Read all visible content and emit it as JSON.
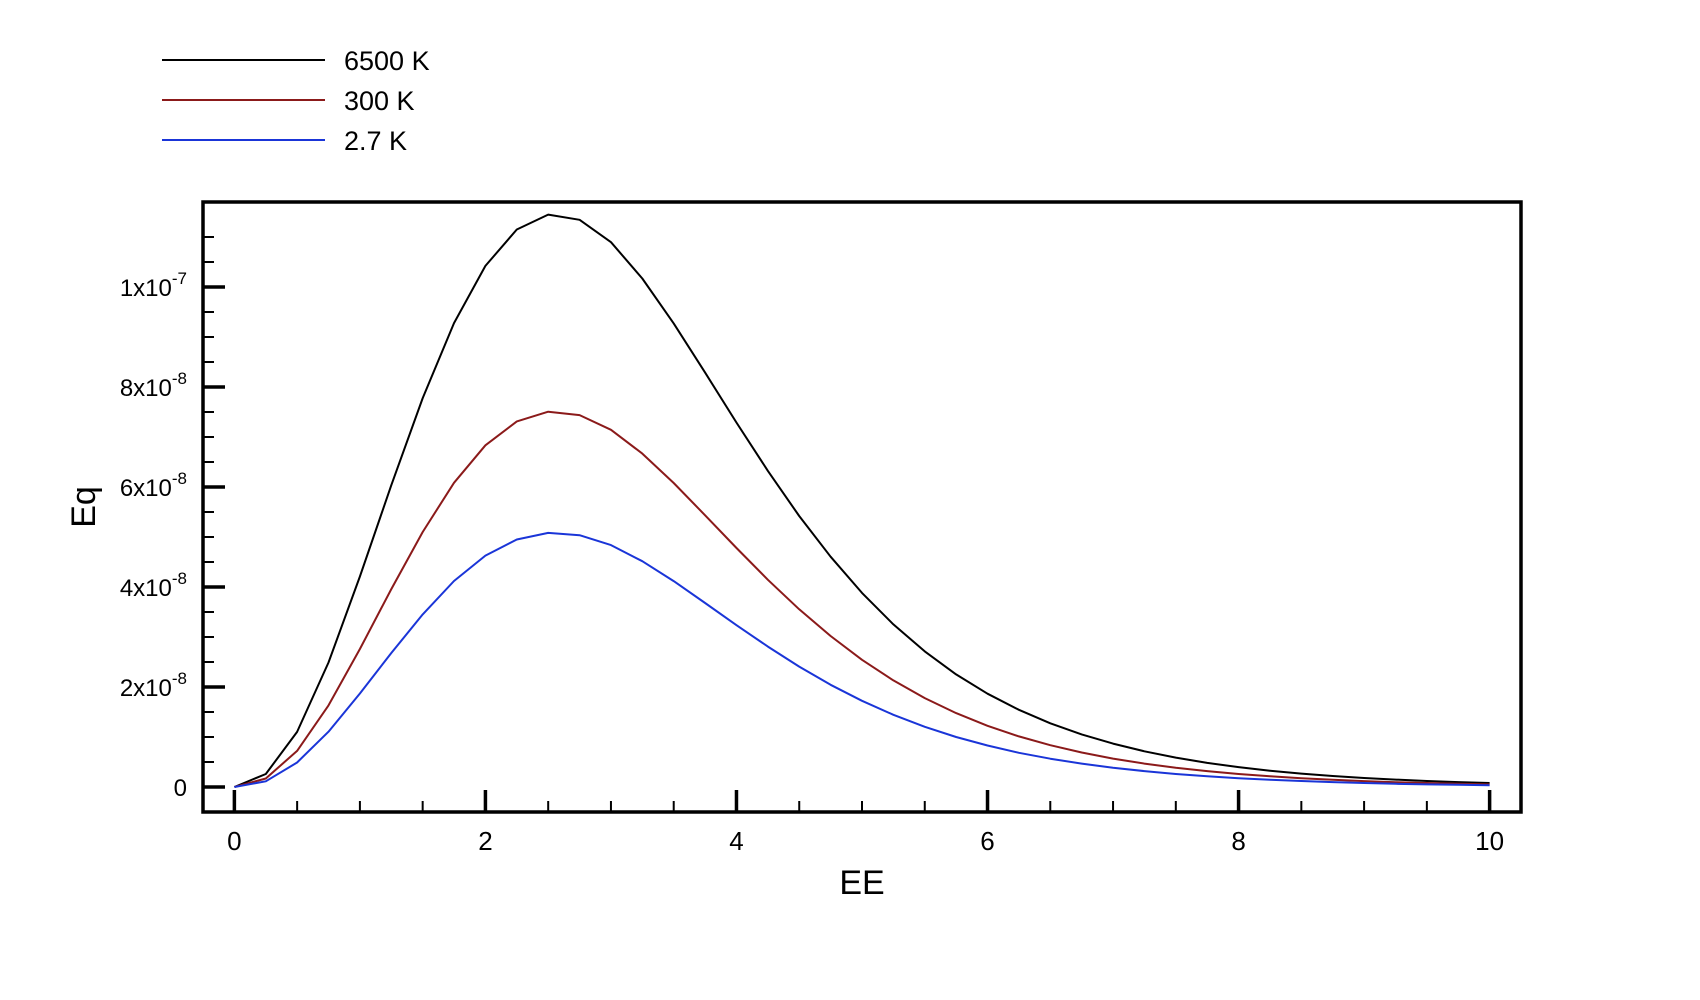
{
  "chart_data": {
    "type": "line",
    "title": "",
    "xlabel": "EE",
    "ylabel": "Eq",
    "xlim": [
      -0.25,
      10.25
    ],
    "ylim": [
      -5e-09,
      1.17e-07
    ],
    "x_ticks": [
      0,
      2,
      4,
      6,
      8,
      10
    ],
    "x_tick_labels": [
      "0",
      "2",
      "4",
      "6",
      "8",
      "10"
    ],
    "x_minor_step": 0.5,
    "y_ticks": [
      {
        "value": 0,
        "base": "0",
        "exp": ""
      },
      {
        "value": 2e-08,
        "base": "2x10",
        "exp": "-8"
      },
      {
        "value": 4e-08,
        "base": "4x10",
        "exp": "-8"
      },
      {
        "value": 6e-08,
        "base": "6x10",
        "exp": "-8"
      },
      {
        "value": 8e-08,
        "base": "8x10",
        "exp": "-8"
      },
      {
        "value": 1e-07,
        "base": "1x10",
        "exp": "-7"
      }
    ],
    "y_minor_step": 5e-09,
    "grid": false,
    "legend_position": "top-left, outside plot",
    "x": [
      0,
      0.25,
      0.5,
      0.75,
      1,
      1.25,
      1.5,
      1.75,
      2,
      2.25,
      2.5,
      2.75,
      3,
      3.25,
      3.5,
      3.75,
      4,
      4.25,
      4.5,
      4.75,
      5,
      5.25,
      5.5,
      5.75,
      6,
      6.25,
      6.5,
      6.75,
      7,
      7.25,
      7.5,
      7.75,
      8,
      8.25,
      8.5,
      8.75,
      9,
      9.25,
      9.5,
      9.75,
      10
    ],
    "series": [
      {
        "name": "6500 K",
        "color": "#000000",
        "values": [
          0,
          2.59e-09,
          1.103e-08,
          2.491e-08,
          4.209e-08,
          6.036e-08,
          7.778e-08,
          9.279e-08,
          1.0423e-07,
          1.115e-07,
          1.1447e-07,
          1.1344e-07,
          1.0896e-07,
          1.017e-07,
          9.273e-08,
          8.288e-08,
          7.288e-08,
          6.322e-08,
          5.421e-08,
          4.606e-08,
          3.882e-08,
          3.252e-08,
          2.712e-08,
          2.252e-08,
          1.866e-08,
          1.544e-08,
          1.275e-08,
          1.052e-08,
          8.67e-09,
          7.14e-09,
          5.88e-09,
          4.83e-09,
          3.97e-09,
          3.26e-09,
          2.67e-09,
          2.19e-09,
          1.79e-09,
          1.47e-09,
          1.2e-09,
          9.8e-10,
          8e-10
        ]
      },
      {
        "name": "300 K",
        "color": "#8b1a1a",
        "values": [
          0,
          1.7e-09,
          7.23e-09,
          1.633e-08,
          2.76e-08,
          3.958e-08,
          5.1e-08,
          6.084e-08,
          6.834e-08,
          7.311e-08,
          7.506e-08,
          7.438e-08,
          7.144e-08,
          6.668e-08,
          6.08e-08,
          5.434e-08,
          4.779e-08,
          4.145e-08,
          3.555e-08,
          3.02e-08,
          2.545e-08,
          2.132e-08,
          1.778e-08,
          1.477e-08,
          1.224e-08,
          1.012e-08,
          8.36e-09,
          6.9e-09,
          5.68e-09,
          4.68e-09,
          3.85e-09,
          3.17e-09,
          2.6e-09,
          2.14e-09,
          1.75e-09,
          1.44e-09,
          1.18e-09,
          9.6e-10,
          7.9e-10,
          6.4e-10,
          5.2e-10
        ]
      },
      {
        "name": "2.7 K",
        "color": "#1a35d8",
        "values": [
          0,
          1.15e-09,
          4.89e-09,
          1.106e-08,
          1.869e-08,
          2.68e-08,
          3.453e-08,
          4.12e-08,
          4.628e-08,
          4.951e-08,
          5.083e-08,
          5.037e-08,
          4.838e-08,
          4.516e-08,
          4.118e-08,
          3.68e-08,
          3.236e-08,
          2.807e-08,
          2.407e-08,
          2.045e-08,
          1.724e-08,
          1.444e-08,
          1.204e-08,
          1e-08,
          8.29e-09,
          6.85e-09,
          5.66e-09,
          4.67e-09,
          3.85e-09,
          3.17e-09,
          2.61e-09,
          2.15e-09,
          1.76e-09,
          1.45e-09,
          1.19e-09,
          9.7e-10,
          8e-10,
          6.5e-10,
          5.3e-10,
          4.4e-10,
          3.6e-10
        ]
      }
    ]
  }
}
